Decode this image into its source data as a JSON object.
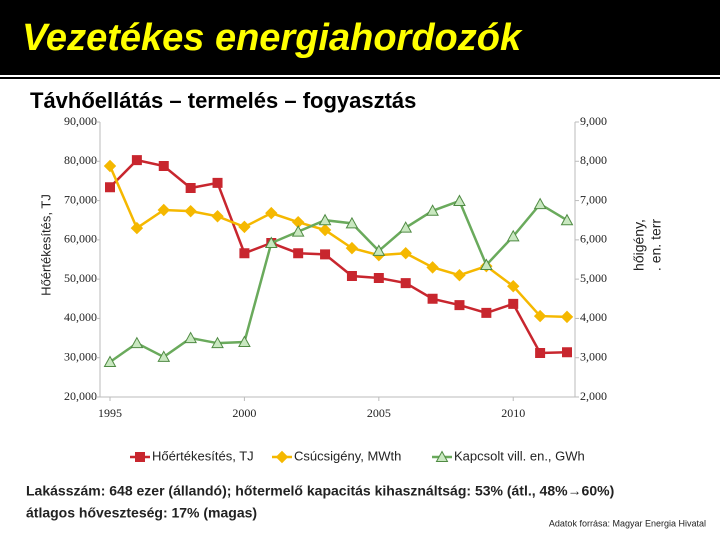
{
  "header": {
    "title": "Vezetékes energiahordozók"
  },
  "chart_data": {
    "type": "line",
    "title": "Távhőellátás – termelés – fogyasztás",
    "y_label": "Hőértékesítés, TJ",
    "y2_label": [
      "hőigény,",
      ". en. terr"
    ],
    "x": [
      1995,
      1996,
      1997,
      1998,
      1999,
      2000,
      2001,
      2002,
      2003,
      2004,
      2005,
      2006,
      2007,
      2008,
      2009,
      2010,
      2011,
      2012
    ],
    "xlim": [
      1995,
      2012
    ],
    "xticks": [
      1995,
      2000,
      2005,
      2010
    ],
    "ylim": [
      20000,
      90000
    ],
    "yticks": [
      {
        "value": 20000,
        "label": "20,000"
      },
      {
        "value": 30000,
        "label": "30,000"
      },
      {
        "value": 40000,
        "label": "40,000"
      },
      {
        "value": 50000,
        "label": "50,000"
      },
      {
        "value": 60000,
        "label": "60,000"
      },
      {
        "value": 70000,
        "label": "70,000"
      },
      {
        "value": 80000,
        "label": "80,000"
      },
      {
        "value": 90000,
        "label": "90,000"
      }
    ],
    "y2lim": [
      2000,
      9000
    ],
    "y2ticks": [
      {
        "value": 2000,
        "label": "2,000"
      },
      {
        "value": 3000,
        "label": "3,000"
      },
      {
        "value": 4000,
        "label": "4,000"
      },
      {
        "value": 5000,
        "label": "5,000"
      },
      {
        "value": 6000,
        "label": "6,000"
      },
      {
        "value": 7000,
        "label": "7,000"
      },
      {
        "value": 8000,
        "label": "8,000"
      },
      {
        "value": 9000,
        "label": "9,000"
      }
    ],
    "series": [
      {
        "name": "Hőértékesítés, TJ",
        "color": "#c8262e",
        "marker": "square",
        "values": [
          73400,
          80300,
          78800,
          73200,
          74500,
          56600,
          59200,
          56600,
          56300,
          50800,
          50300,
          49000,
          45000,
          43400,
          41400,
          43700,
          31200,
          31400
        ]
      },
      {
        "name": "Csúcsigény, MWth",
        "color": "#f5b800",
        "marker": "diamond",
        "axis": "y2",
        "values": [
          7880,
          6300,
          6760,
          6730,
          6600,
          6330,
          6680,
          6450,
          6250,
          5790,
          5610,
          5660,
          5300,
          5100,
          5330,
          4820,
          4060,
          4040
        ]
      },
      {
        "name": "Kapcsolt vill. en., GWh",
        "color": "#6aaa5c",
        "marker": "triangle",
        "axis": "y2",
        "values": [
          2890,
          3370,
          3020,
          3500,
          3370,
          3400,
          5920,
          6210,
          6500,
          6420,
          5720,
          6310,
          6740,
          6990,
          5360,
          6090,
          6910,
          6500
        ]
      }
    ]
  },
  "footer": {
    "line1": "Lakásszám: 648 ezer (állandó); hőtermelő kapacitás kihasználtság: 53% (átl., 48%→60%)",
    "line2": "átlagos hőveszteség: 17% (magas)",
    "source": "Adatok forrása: Magyar Energia Hivatal"
  }
}
